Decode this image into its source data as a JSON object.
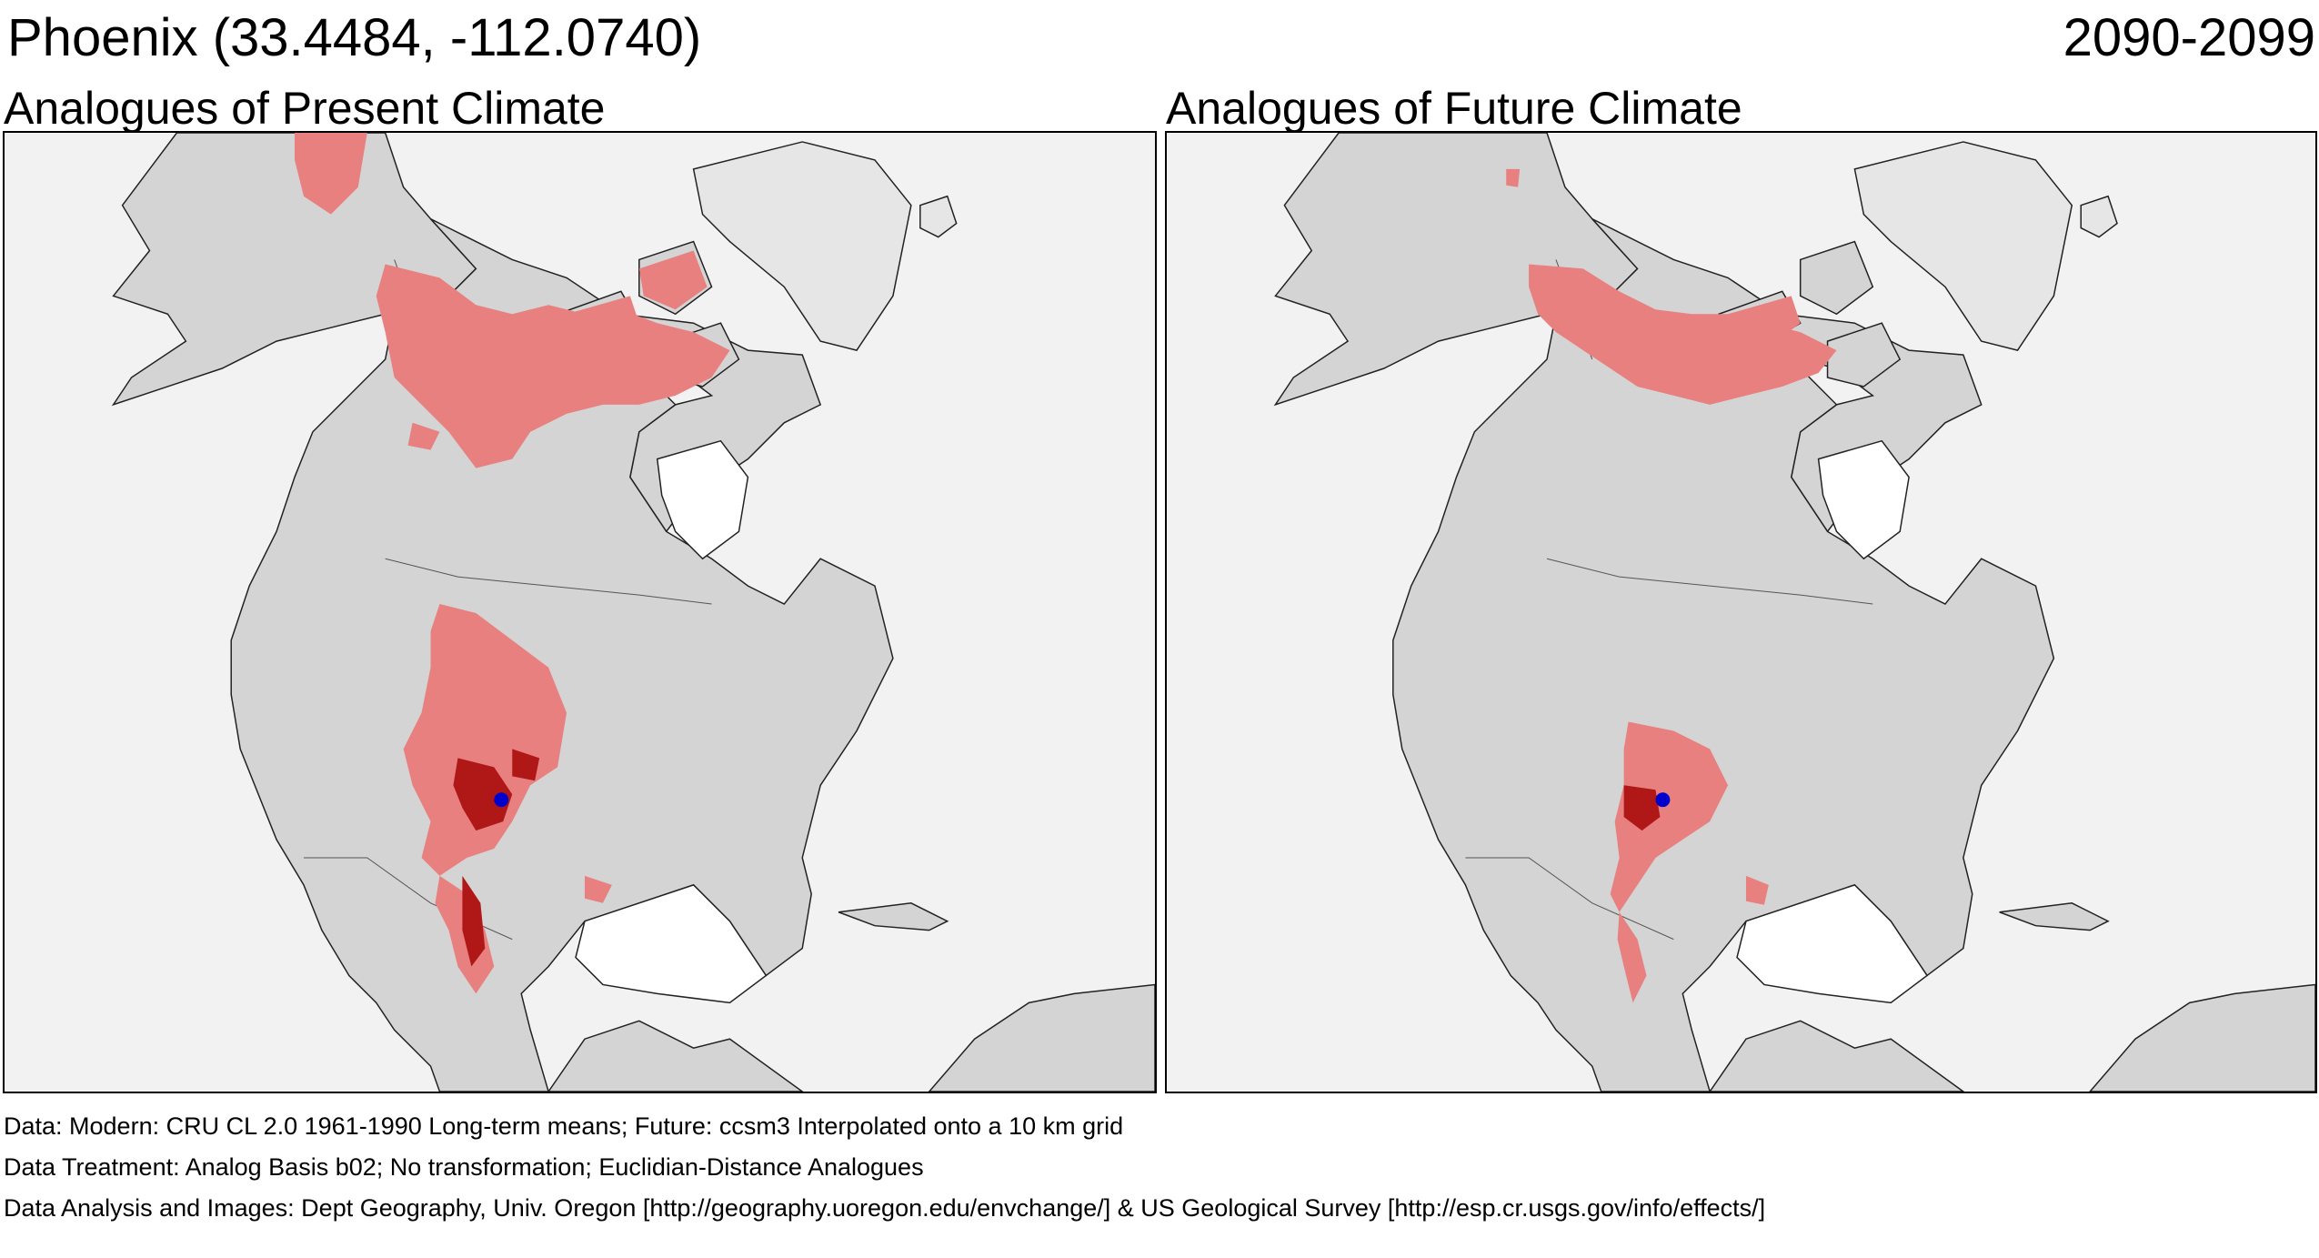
{
  "header": {
    "title": "Phoenix  (33.4484, -112.0740)",
    "period": "2090-2099"
  },
  "panels": [
    {
      "title": "Analogues of Present Climate",
      "location_marker": "blue-dot"
    },
    {
      "title": "Analogues of Future Climate",
      "location_marker": "blue-dot"
    }
  ],
  "footer": {
    "data": "Data:  Modern: CRU CL 2.0 1961-1990 Long-term means; Future: ccsm3 Interpolated onto a 10 km grid",
    "treatment": "Data Treatment:  Analog Basis b02; No transformation; Euclidian-Distance Analogues",
    "analysis": "Data Analysis and Images:  Dept Geography, Univ. Oregon [http://geography.uoregon.edu/envchange/] & US Geological Survey [http://esp.cr.usgs.gov/info/effects/]"
  },
  "colors": {
    "land": "#d4d4d4",
    "ocean": "#f2f2f2",
    "analog_light": "#e88080",
    "analog_dark": "#b01818",
    "marker": "#0000cc"
  }
}
